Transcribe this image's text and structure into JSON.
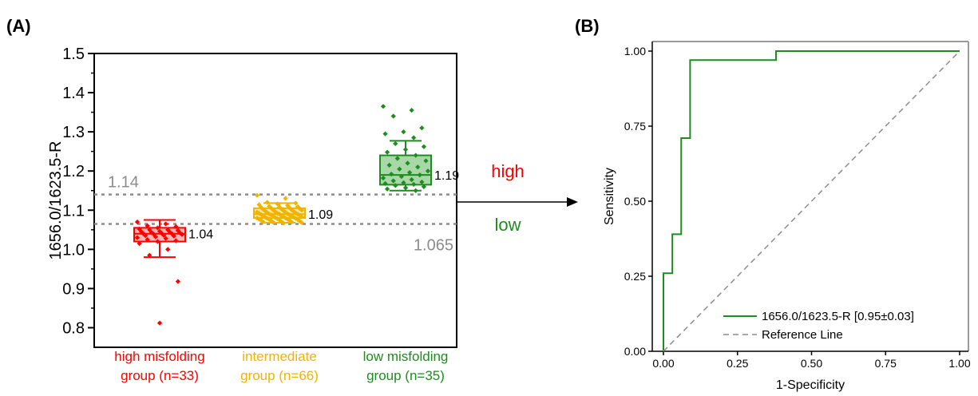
{
  "chart_data": [
    {
      "panel_label": "(A)",
      "type": "box",
      "ylabel": "1656.0/1623.5-R",
      "ylim": [
        0.75,
        1.5
      ],
      "yticks": [
        "0.8",
        "0.9",
        "1.0",
        "1.1",
        "1.2",
        "1.3",
        "1.4",
        "1.5"
      ],
      "thresholds": [
        {
          "value": 1.14,
          "label": "1.14"
        },
        {
          "value": 1.065,
          "label": "1.065"
        }
      ],
      "class_labels": [
        {
          "label": "high",
          "color": "#ff0000"
        },
        {
          "label": "low",
          "color": "#1e8c1e"
        }
      ],
      "groups": [
        {
          "name_line1": "high misfolding",
          "name_line2": "group (n=33)",
          "color": "#ff0000",
          "fill": "#ffb3b3",
          "q1": 1.02,
          "median": 1.04,
          "q3": 1.055,
          "whisker_low": 0.98,
          "whisker_high": 1.075,
          "median_label": "1.04",
          "points": [
            1.07,
            1.065,
            1.06,
            1.058,
            1.055,
            1.052,
            1.05,
            1.05,
            1.048,
            1.046,
            1.045,
            1.044,
            1.043,
            1.042,
            1.041,
            1.04,
            1.04,
            1.039,
            1.038,
            1.036,
            1.035,
            1.034,
            1.032,
            1.03,
            1.028,
            1.025,
            1.022,
            1.02,
            1.015,
            1.0,
            0.985,
            0.918,
            0.812
          ]
        },
        {
          "name_line1": "intermediate",
          "name_line2": "group (n=66)",
          "color": "#f0b400",
          "fill": "#fde8a8",
          "q1": 1.08,
          "median": 1.09,
          "q3": 1.105,
          "whisker_low": 1.068,
          "whisker_high": 1.118,
          "median_label": "1.09",
          "points": [
            1.138,
            1.13,
            1.12,
            1.118,
            1.116,
            1.114,
            1.112,
            1.11,
            1.109,
            1.108,
            1.107,
            1.106,
            1.105,
            1.104,
            1.103,
            1.102,
            1.101,
            1.1,
            1.1,
            1.099,
            1.098,
            1.097,
            1.096,
            1.095,
            1.095,
            1.094,
            1.093,
            1.092,
            1.092,
            1.091,
            1.09,
            1.09,
            1.09,
            1.089,
            1.088,
            1.088,
            1.087,
            1.086,
            1.085,
            1.085,
            1.084,
            1.083,
            1.083,
            1.082,
            1.082,
            1.081,
            1.08,
            1.08,
            1.079,
            1.079,
            1.078,
            1.077,
            1.077,
            1.076,
            1.076,
            1.075,
            1.074,
            1.074,
            1.073,
            1.072,
            1.071,
            1.07,
            1.07,
            1.069,
            1.068,
            1.067
          ]
        },
        {
          "name_line1": "low misfolding",
          "name_line2": "group (n=35)",
          "color": "#1e8c1e",
          "fill": "#a8d8a8",
          "q1": 1.165,
          "median": 1.19,
          "q3": 1.24,
          "whisker_low": 1.15,
          "whisker_high": 1.277,
          "median_label": "1.19",
          "points": [
            1.365,
            1.355,
            1.34,
            1.31,
            1.3,
            1.295,
            1.285,
            1.27,
            1.262,
            1.255,
            1.248,
            1.24,
            1.232,
            1.226,
            1.22,
            1.215,
            1.21,
            1.205,
            1.2,
            1.196,
            1.192,
            1.19,
            1.186,
            1.182,
            1.178,
            1.175,
            1.172,
            1.17,
            1.168,
            1.166,
            1.163,
            1.16,
            1.157,
            1.154,
            1.15
          ]
        }
      ]
    },
    {
      "panel_label": "(B)",
      "type": "line",
      "xlabel": "1-Specificity",
      "ylabel": "Sensitivity",
      "xlim": [
        0,
        1
      ],
      "ylim": [
        0,
        1
      ],
      "xticks": [
        "0.00",
        "0.25",
        "0.50",
        "0.75",
        "1.00"
      ],
      "yticks": [
        "0.00",
        "0.25",
        "0.50",
        "0.75",
        "1.00"
      ],
      "series": [
        {
          "name": "1656.0/1623.5-R [0.95±0.03]",
          "color": "#1e8c1e",
          "x": [
            0,
            0,
            0.03,
            0.03,
            0.06,
            0.06,
            0.09,
            0.09,
            0.38,
            0.38,
            1.0
          ],
          "y": [
            0,
            0.26,
            0.26,
            0.39,
            0.39,
            0.71,
            0.71,
            0.97,
            0.97,
            1.0,
            1.0
          ]
        },
        {
          "name": "Reference Line",
          "color": "#8c8c8c",
          "dashed": true,
          "x": [
            0,
            1
          ],
          "y": [
            0,
            1
          ]
        }
      ],
      "legend_position": "bottom-right"
    }
  ]
}
